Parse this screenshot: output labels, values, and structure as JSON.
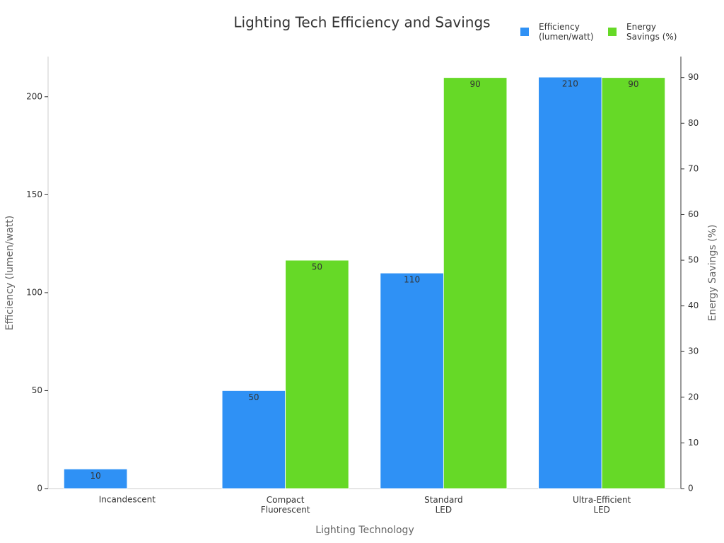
{
  "chart_data": {
    "type": "bar",
    "title": "Lighting Tech Efficiency and Savings",
    "x_label": "Lighting Technology",
    "y_label": "Efficiency (lumen/watt)",
    "y2_label": "Energy Savings (%)",
    "categories": [
      "Incandescent",
      "Compact\nFluorescent",
      "Standard\nLED",
      "Ultra-Efficient\nLED"
    ],
    "series": [
      {
        "name": "Efficiency\n(lumen/watt)",
        "color": "#2f91f5",
        "values": [
          10,
          50,
          110,
          210
        ],
        "axis": "y"
      },
      {
        "name": "Energy\nSavings (%)",
        "color": "#66d927",
        "values": [
          0,
          50,
          90,
          90
        ],
        "axis": "y2"
      }
    ],
    "ylim": [
      0,
      220.5
    ],
    "yticks": [
      0,
      50,
      100,
      150,
      200
    ],
    "y2lim": [
      0,
      94.6
    ],
    "y2ticks": [
      0,
      10,
      20,
      30,
      40,
      50,
      60,
      70,
      80,
      90
    ],
    "legend": "top-right"
  }
}
